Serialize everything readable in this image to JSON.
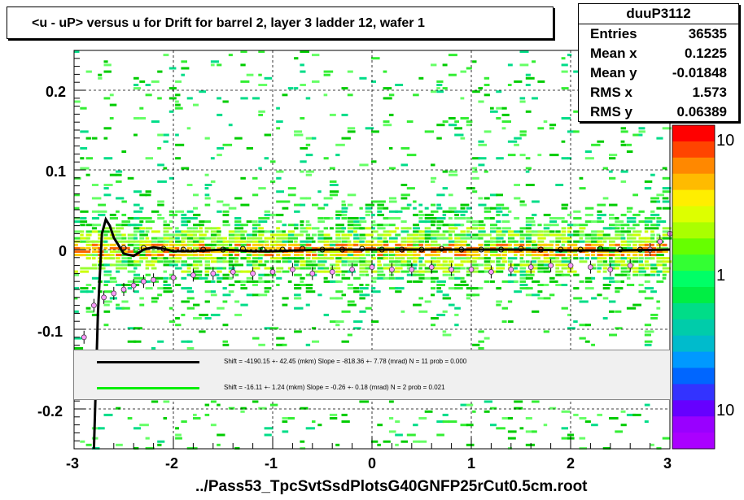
{
  "title": "<u - uP>       versus   u for Drift for barrel 2, layer 3 ladder 12, wafer 1",
  "stats": {
    "name": "duuP3112",
    "rows": [
      {
        "label": "Entries",
        "value": "36535"
      },
      {
        "label": "Mean x",
        "value": "0.1225"
      },
      {
        "label": "Mean y",
        "value": "-0.01848"
      },
      {
        "label": "RMS x",
        "value": "1.573"
      },
      {
        "label": "RMS y",
        "value": "0.06389"
      }
    ]
  },
  "legend": {
    "entries": [
      {
        "color": "#000000",
        "text": "Shift = -4190.15 +- 42.45 (mkm) Slope =  -818.36 +- 7.78 (mrad)  N = 11 prob = 0.000"
      },
      {
        "color": "#00ee00",
        "text": "Shift =   -16.11 +- 1.24 (mkm) Slope =    -0.26 +- 0.18 (mrad)  N = 2 prob = 0.021"
      }
    ]
  },
  "chart_data": {
    "type": "heatmap",
    "title": "<u - uP>       versus   u for Drift for barrel 2, layer 3 ladder 12, wafer 1",
    "xlabel": "../Pass53_TpcSvtSsdPlotsG40GNFP25rCut0.5cm.root",
    "ylabel": "",
    "xlim": [
      -3,
      3
    ],
    "ylim": [
      -0.25,
      0.25
    ],
    "x_ticks": [
      "-3",
      "-2",
      "-1",
      "0",
      "1",
      "2",
      "3"
    ],
    "y_ticks": [
      "-0.2",
      "-0.1",
      "0",
      "0.1",
      "0.2"
    ],
    "color_scale": "log",
    "colorbar_ticks": [
      "10",
      "1",
      "10"
    ],
    "grid": true,
    "profile_mean_x": [
      -2.9,
      -2.8,
      -2.7,
      -2.6,
      -2.5,
      -2.4,
      -2.3,
      -2.2,
      -2.0,
      -1.8,
      -1.6,
      -1.4,
      -1.2,
      -1.0,
      -0.8,
      -0.6,
      -0.4,
      -0.2,
      0.0,
      0.2,
      0.4,
      0.6,
      0.8,
      1.0,
      1.2,
      1.4,
      1.6,
      1.8,
      2.0,
      2.2,
      2.4,
      2.6,
      2.8,
      2.9,
      3.0
    ],
    "profile_mean_y": [
      -0.11,
      -0.07,
      -0.06,
      -0.055,
      -0.05,
      -0.045,
      -0.04,
      -0.038,
      -0.035,
      -0.032,
      -0.03,
      -0.028,
      -0.03,
      -0.028,
      -0.025,
      -0.03,
      -0.028,
      -0.025,
      -0.022,
      -0.025,
      -0.025,
      -0.022,
      -0.025,
      -0.025,
      -0.028,
      -0.025,
      -0.022,
      -0.02,
      -0.02,
      -0.022,
      -0.025,
      -0.02,
      0.0,
      0.01,
      0.02
    ],
    "profile_zero_x": [
      -2.5,
      -2.3,
      -2.1,
      -1.9,
      -1.7,
      -1.5,
      -1.3,
      -1.1,
      -0.9,
      -0.7,
      -0.5,
      -0.3,
      -0.1,
      0.1,
      0.3,
      0.5,
      0.7,
      0.9,
      1.1,
      1.3,
      1.5,
      1.7,
      1.9,
      2.1,
      2.3,
      2.5,
      2.7
    ],
    "profile_zero_y": [
      0.002,
      0.002,
      0.001,
      0.0,
      0.0,
      0.0,
      0.001,
      0.0,
      0.0,
      0.001,
      0.0,
      0.0,
      0.001,
      0.0,
      0.0,
      0.0,
      0.001,
      0.0,
      0.0,
      0.0,
      0.001,
      0.0,
      0.0,
      0.0,
      0.001,
      0.0,
      0.0
    ],
    "fit_black_x": [
      -2.8,
      -2.76,
      -2.72,
      -2.68,
      -2.64,
      -2.6,
      -2.5,
      -2.4,
      -2.3,
      -2.2,
      -2.1,
      -2.0,
      -1.8,
      -1.5,
      -1.2,
      -1.0,
      -0.5,
      0.0,
      0.5,
      1.0,
      1.5,
      2.0,
      2.5,
      3.0
    ],
    "fit_black_y": [
      -0.25,
      -0.08,
      0.02,
      0.038,
      0.03,
      0.015,
      -0.005,
      -0.008,
      0.0,
      0.003,
      0.001,
      -0.002,
      -0.002,
      0.0,
      -0.002,
      -0.002,
      0.0,
      0.0,
      0.0,
      0.0,
      0.0,
      -0.001,
      -0.001,
      0.0
    ]
  }
}
